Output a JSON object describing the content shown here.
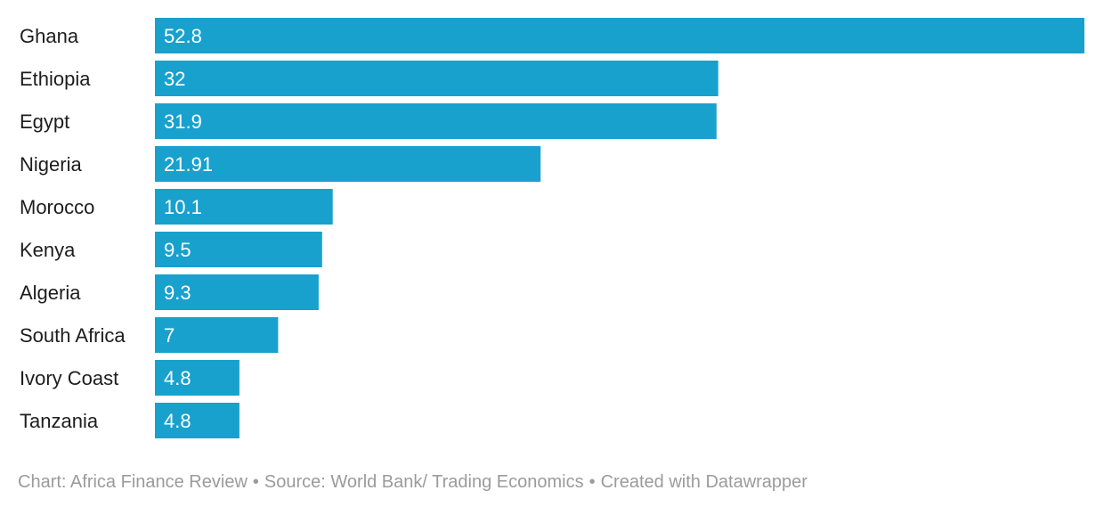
{
  "chart_data": {
    "type": "bar",
    "orientation": "horizontal",
    "categories": [
      "Ghana",
      "Ethiopia",
      "Egypt",
      "Nigeria",
      "Morocco",
      "Kenya",
      "Algeria",
      "South Africa",
      "Ivory Coast",
      "Tanzania"
    ],
    "values": [
      52.8,
      32,
      31.9,
      21.91,
      10.1,
      9.5,
      9.3,
      7,
      4.8,
      4.8
    ],
    "value_labels": [
      "52.8",
      "32",
      "31.9",
      "21.91",
      "10.1",
      "9.5",
      "9.3",
      "7",
      "4.8",
      "4.8"
    ],
    "xlim": [
      0,
      52.8
    ],
    "bar_color": "#18a1cd",
    "grid": false,
    "title": "",
    "xlabel": "",
    "ylabel": ""
  },
  "footer": {
    "chart_credit": "Chart: Africa Finance Review",
    "source": "Source: World Bank/ Trading Economics",
    "created_with": "Created with Datawrapper",
    "separator": "•"
  }
}
